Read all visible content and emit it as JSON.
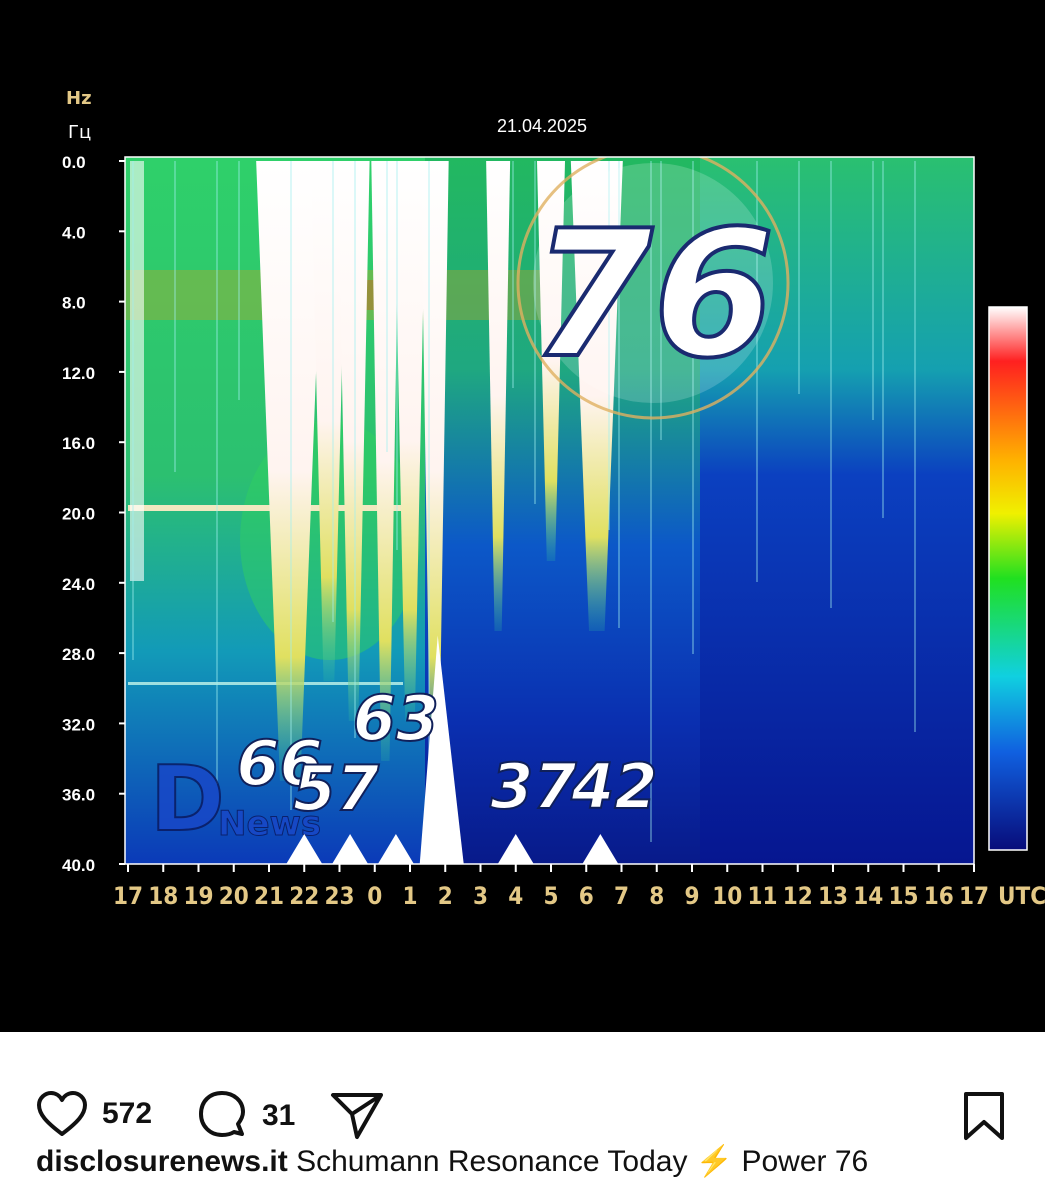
{
  "post": {
    "chart_data": {
      "type": "heatmap",
      "title": "21.04.2025",
      "ylabel_latin": "Hz",
      "ylabel_cyrillic": "Гц",
      "y_ticks": [
        "0.0",
        "4.0",
        "8.0",
        "12.0",
        "16.0",
        "20.0",
        "24.0",
        "28.0",
        "32.0",
        "36.0",
        "40.0"
      ],
      "ylim": [
        0,
        40
      ],
      "y_inverted": true,
      "x_ticks": [
        "17",
        "18",
        "19",
        "20",
        "21",
        "22",
        "23",
        "0",
        "1",
        "2",
        "3",
        "4",
        "5",
        "6",
        "7",
        "8",
        "9",
        "10",
        "11",
        "12",
        "13",
        "14",
        "15",
        "16",
        "17"
      ],
      "x_unit": "UTC",
      "colorbar": "dark-blue to white",
      "overlay_logo_text": "News",
      "annotations": [
        {
          "label": "76",
          "x_hour": 8.5,
          "style": "large-circled"
        },
        {
          "label": "66",
          "x_hour": 4.3
        },
        {
          "label": "57",
          "x_hour": 5.9
        },
        {
          "label": "63",
          "x_hour": 7.6
        },
        {
          "label": "37",
          "x_hour": 11.5
        },
        {
          "label": "42",
          "x_hour": 13.8
        }
      ],
      "markers_x_hours": [
        5.0,
        6.3,
        7.6,
        11.0,
        13.4
      ],
      "spike_x_hour": 8.9
    },
    "actions": {
      "like_count": "572",
      "comment_count": "31"
    },
    "caption": {
      "username": "disclosurenews.it",
      "text_before": " Schumann Resonance Today ",
      "emoji": "⚡",
      "text_after": " Power 76"
    },
    "icons": {
      "like": "heart-icon",
      "comment": "comment-icon",
      "share": "send-icon",
      "save": "bookmark-icon"
    },
    "colors": {
      "chart_background": "#000000",
      "tick_label": "#e3c886",
      "annotation": "#ffffff"
    }
  }
}
